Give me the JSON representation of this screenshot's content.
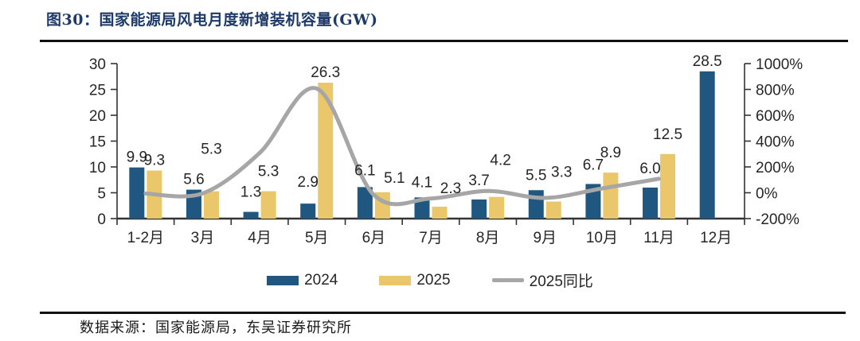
{
  "figure": {
    "title": "图30：国家能源局风电月度新增装机容量(GW)",
    "source": "数据来源：国家能源局，东吴证券研究所"
  },
  "chart_data": {
    "type": "bar",
    "subtype": "grouped-bars-with-line-combo",
    "title": "国家能源局风电月度新增装机容量(GW)",
    "categories": [
      "1-2月",
      "3月",
      "4月",
      "5月",
      "6月",
      "7月",
      "8月",
      "9月",
      "10月",
      "11月",
      "12月"
    ],
    "series": [
      {
        "name": "2024",
        "type": "bar",
        "axis": "left",
        "color": "#1F5780",
        "values": [
          9.9,
          5.6,
          1.3,
          2.9,
          6.1,
          4.1,
          3.7,
          5.5,
          6.7,
          6.0,
          28.5
        ],
        "labels": [
          "9.9",
          "5.6",
          "1.3",
          "2.9",
          "6.1",
          "4.1",
          "3.7",
          "5.5",
          "6.7",
          "6.0",
          "28.5"
        ]
      },
      {
        "name": "2025",
        "type": "bar",
        "axis": "left",
        "color": "#EAC76A",
        "values": [
          9.3,
          5.3,
          5.3,
          26.3,
          5.1,
          2.3,
          4.2,
          3.3,
          8.9,
          12.5,
          null
        ],
        "labels": [
          "9.3",
          "5.3",
          "5.3",
          "26.3",
          "5.1",
          "2.3",
          "4.2",
          "3.3",
          "8.9",
          "12.5",
          ""
        ]
      },
      {
        "name": "2025同比",
        "type": "line",
        "axis": "right",
        "color": "#A6A6A6",
        "values_pct": [
          -6,
          -5,
          308,
          807,
          -16,
          -44,
          14,
          -40,
          33,
          108,
          null
        ]
      }
    ],
    "left_axis": {
      "min": 0,
      "max": 30,
      "tick_values": [
        0,
        5,
        10,
        15,
        20,
        25,
        30
      ]
    },
    "right_axis": {
      "min_pct": -200,
      "max_pct": 1000,
      "tick_values": [
        1000,
        800,
        600,
        400,
        200,
        0,
        -200
      ],
      "tick_labels": [
        "1000%",
        "800%",
        "600%",
        "400%",
        "200%",
        "0%",
        "-200%"
      ]
    },
    "legend_position": "bottom",
    "grid": false,
    "axis_color": "#333333",
    "label_color": "#262626"
  }
}
